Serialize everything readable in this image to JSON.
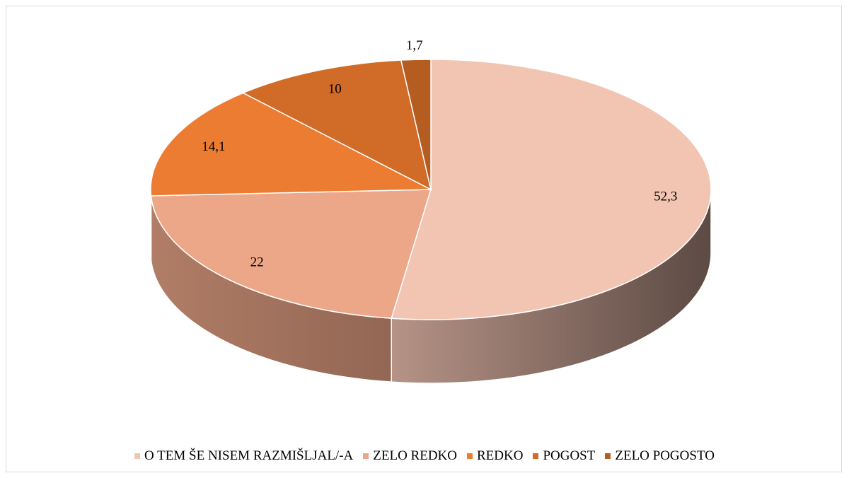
{
  "chart_data": {
    "type": "pie3d",
    "categories": [
      "O TEM ŠE NISEM RAZMIŠLJAL/-A",
      "ZELO REDKO",
      "REDKO",
      "POGOST",
      "ZELO POGOSTO"
    ],
    "values": [
      52.3,
      22,
      14.1,
      10,
      1.7
    ],
    "value_labels": [
      "52,3",
      "22",
      "14,1",
      "10",
      "1,7"
    ],
    "colors": [
      "#f2c4b2",
      "#eca688",
      "#eb7c31",
      "#d06b28",
      "#b55c21"
    ],
    "legend": "bottom"
  }
}
